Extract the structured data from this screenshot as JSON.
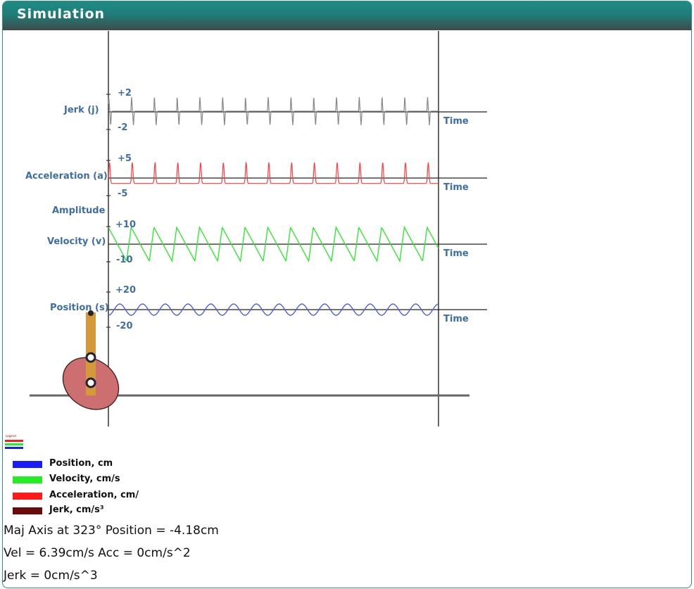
{
  "header": {
    "title": "Simulation"
  },
  "graph": {
    "amplitude_label": "Amplitude",
    "time_label": "Time",
    "rows": [
      {
        "key": "jerk",
        "label": "Jerk (j)",
        "top_tick": "+2",
        "bottom_tick": "-2",
        "color": "#888888"
      },
      {
        "key": "acceleration",
        "label": "Acceleration (a)",
        "top_tick": "+5",
        "bottom_tick": "-5",
        "color": "#ff3b3b"
      },
      {
        "key": "velocity",
        "label": "Velocity (v)",
        "top_tick": "+10",
        "bottom_tick": "-10",
        "color": "#33e833"
      },
      {
        "key": "position",
        "label": "Position (s)",
        "top_tick": "+20",
        "bottom_tick": "-20",
        "color": "#4a5fe6"
      }
    ]
  },
  "legend": {
    "title": "Legend",
    "items": [
      {
        "label": "Position, cm",
        "color": "#1a1aff"
      },
      {
        "label": "Velocity, cm/s",
        "color": "#22ee22"
      },
      {
        "label": "Acceleration, cm/",
        "color": "#ff1a1a"
      },
      {
        "label": "Jerk, cm/s³",
        "color": "#6b0a0a"
      }
    ]
  },
  "readouts": {
    "line1": "Maj Axis at 323° Position = -4.18cm",
    "line2": "Vel = 6.39cm/s Acc = 0cm/s^2",
    "line3": "Jerk = 0cm/s^3"
  },
  "cam": {
    "angle_deg": 323,
    "body_color": "#cd6e70",
    "follower_color": "#d49a3a"
  }
}
